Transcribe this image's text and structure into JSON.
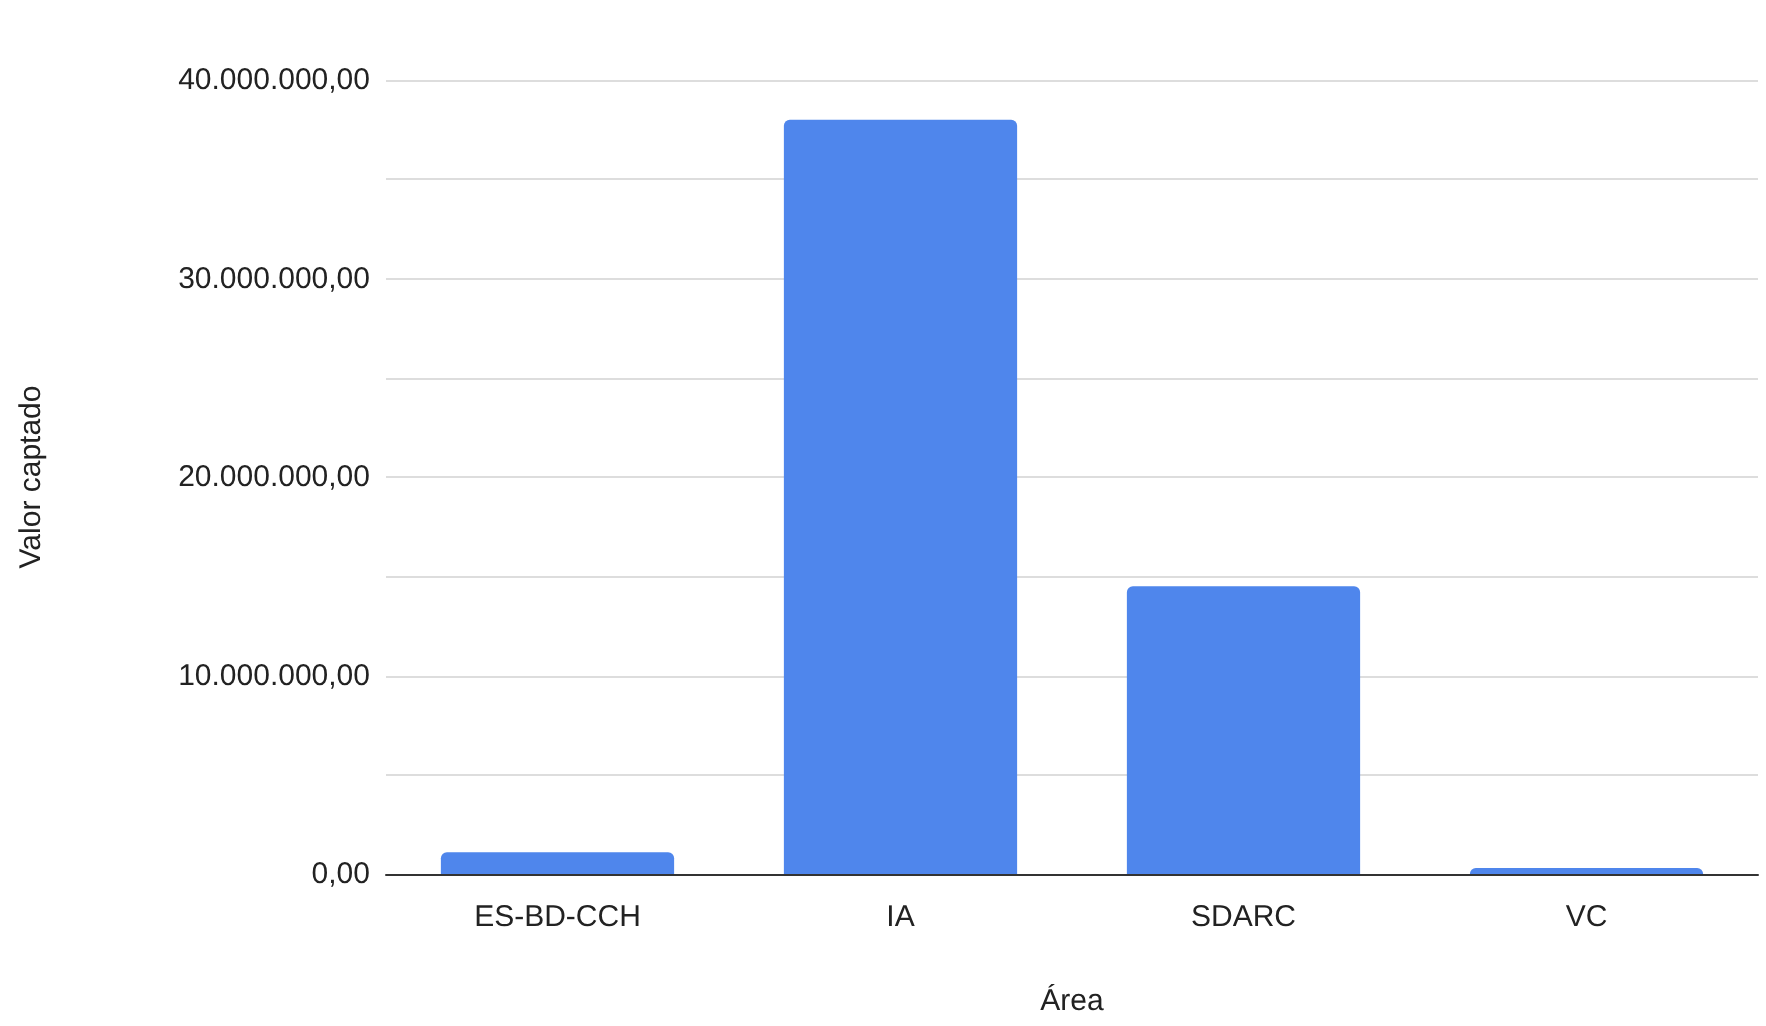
{
  "chart_data": {
    "type": "bar",
    "xlabel": "Área",
    "ylabel": "Valor captado",
    "categories": [
      "ES-BD-CCH",
      "IA",
      "SDARC",
      "VC"
    ],
    "values": [
      1100000,
      38000000,
      14500000,
      300000
    ],
    "color": "#4f86ec",
    "ylim": [
      0,
      40000000
    ],
    "yticks": [
      {
        "value": 0,
        "label": "0,00"
      },
      {
        "value": 5000000,
        "label": null
      },
      {
        "value": 10000000,
        "label": "10.000.000,00"
      },
      {
        "value": 15000000,
        "label": null
      },
      {
        "value": 20000000,
        "label": "20.000.000,00"
      },
      {
        "value": 25000000,
        "label": null
      },
      {
        "value": 30000000,
        "label": "30.000.000,00"
      },
      {
        "value": 35000000,
        "label": null
      },
      {
        "value": 40000000,
        "label": "40.000.000,00"
      }
    ],
    "grid": true
  }
}
